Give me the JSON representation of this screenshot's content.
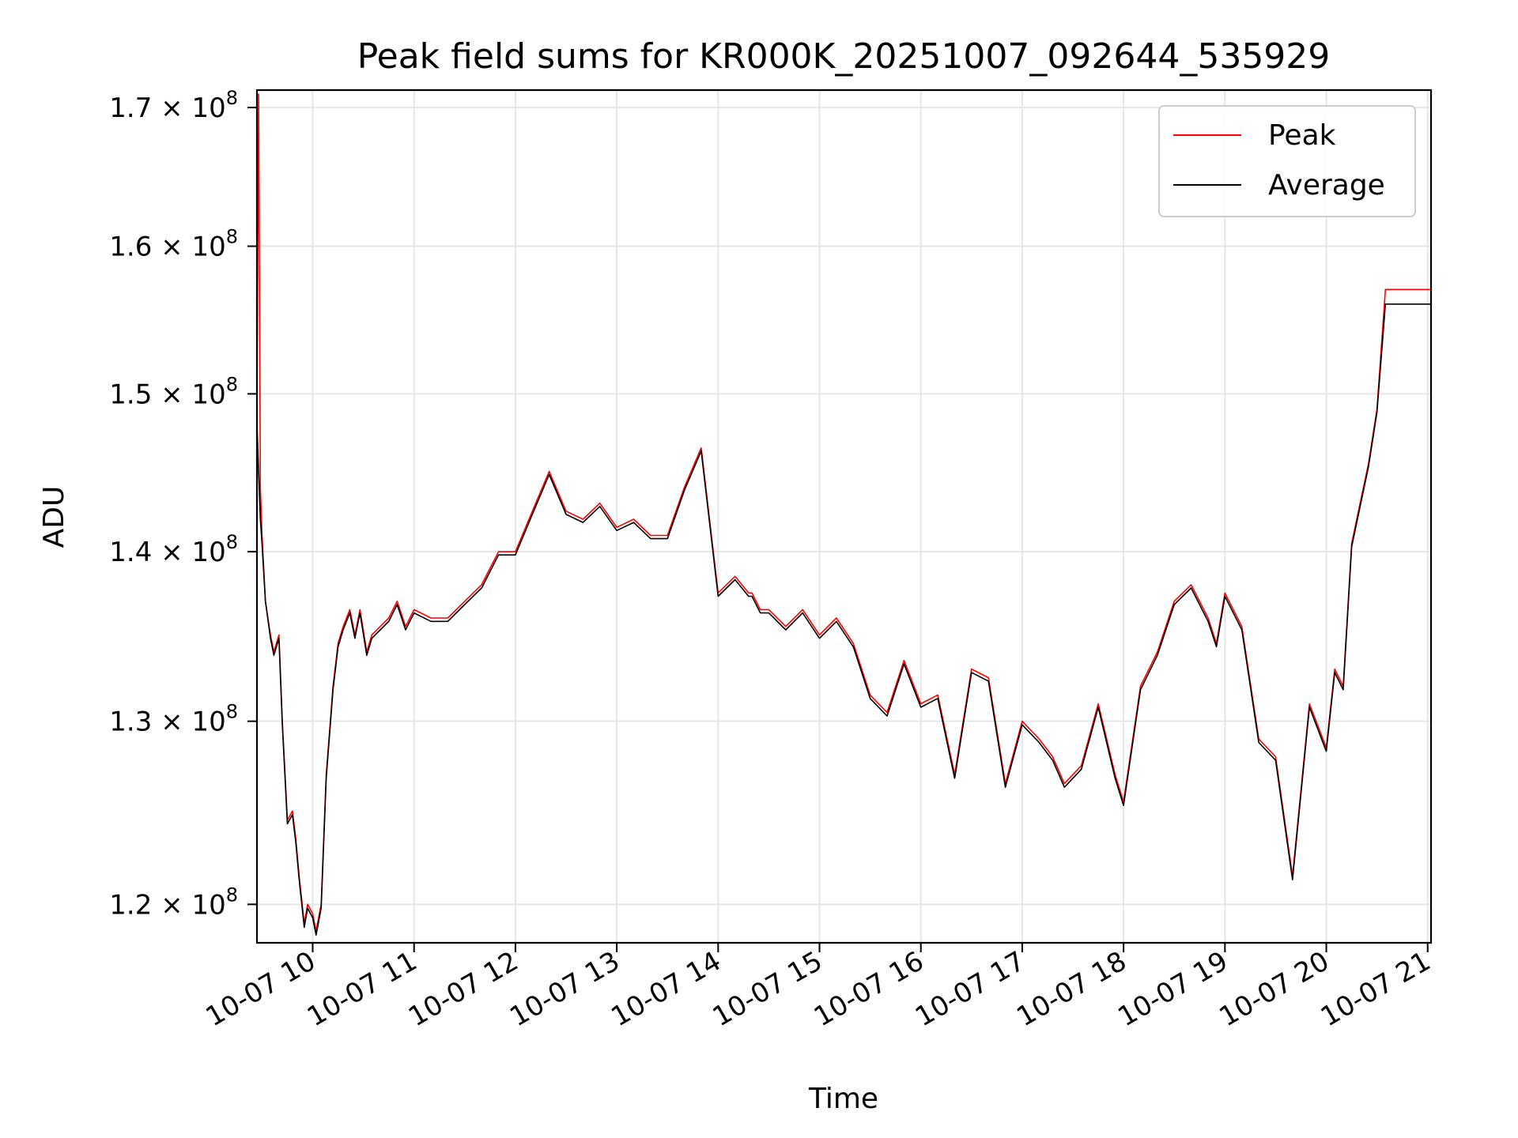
{
  "chart_data": {
    "type": "line",
    "title": "Peak field sums for KR000K_20251007_092644_535929",
    "xlabel": "Time",
    "ylabel": "ADU",
    "yscale": "log",
    "ylim": [
      118000000,
      171300000
    ],
    "xlim": [
      "2025-10-07 09:27",
      "2025-10-07 21:02"
    ],
    "grid": true,
    "legend_position": "top-right",
    "x_ticks": [
      {
        "value": "2025-10-07 10:00",
        "label": "10-07 10"
      },
      {
        "value": "2025-10-07 11:00",
        "label": "10-07 11"
      },
      {
        "value": "2025-10-07 12:00",
        "label": "10-07 12"
      },
      {
        "value": "2025-10-07 13:00",
        "label": "10-07 13"
      },
      {
        "value": "2025-10-07 14:00",
        "label": "10-07 14"
      },
      {
        "value": "2025-10-07 15:00",
        "label": "10-07 15"
      },
      {
        "value": "2025-10-07 16:00",
        "label": "10-07 16"
      },
      {
        "value": "2025-10-07 17:00",
        "label": "10-07 17"
      },
      {
        "value": "2025-10-07 18:00",
        "label": "10-07 18"
      },
      {
        "value": "2025-10-07 19:00",
        "label": "10-07 19"
      },
      {
        "value": "2025-10-07 20:00",
        "label": "10-07 20"
      },
      {
        "value": "2025-10-07 21:00",
        "label": "10-07 21"
      }
    ],
    "y_ticks": [
      {
        "value": 120000000,
        "mantissa": "1.2",
        "exponent": "8"
      },
      {
        "value": 130000000,
        "mantissa": "1.3",
        "exponent": "8"
      },
      {
        "value": 140000000,
        "mantissa": "1.4",
        "exponent": "8"
      },
      {
        "value": 150000000,
        "mantissa": "1.5",
        "exponent": "8"
      },
      {
        "value": 160000000,
        "mantissa": "1.6",
        "exponent": "8"
      },
      {
        "value": 170000000,
        "mantissa": "1.7",
        "exponent": "8"
      }
    ],
    "series": [
      {
        "name": "Peak",
        "color": "#ff0000",
        "x": [
          "2025-10-07 09:27",
          "2025-10-07 09:28",
          "2025-10-07 09:29",
          "2025-10-07 09:30",
          "2025-10-07 09:32",
          "2025-10-07 09:35",
          "2025-10-07 09:37",
          "2025-10-07 09:40",
          "2025-10-07 09:42",
          "2025-10-07 09:45",
          "2025-10-07 09:48",
          "2025-10-07 09:50",
          "2025-10-07 09:52",
          "2025-10-07 09:55",
          "2025-10-07 09:57",
          "2025-10-07 10:00",
          "2025-10-07 10:02",
          "2025-10-07 10:05",
          "2025-10-07 10:08",
          "2025-10-07 10:12",
          "2025-10-07 10:15",
          "2025-10-07 10:18",
          "2025-10-07 10:22",
          "2025-10-07 10:25",
          "2025-10-07 10:28",
          "2025-10-07 10:32",
          "2025-10-07 10:35",
          "2025-10-07 10:40",
          "2025-10-07 10:45",
          "2025-10-07 10:50",
          "2025-10-07 10:55",
          "2025-10-07 11:00",
          "2025-10-07 11:10",
          "2025-10-07 11:20",
          "2025-10-07 11:30",
          "2025-10-07 11:40",
          "2025-10-07 11:50",
          "2025-10-07 12:00",
          "2025-10-07 12:10",
          "2025-10-07 12:20",
          "2025-10-07 12:30",
          "2025-10-07 12:40",
          "2025-10-07 12:50",
          "2025-10-07 13:00",
          "2025-10-07 13:10",
          "2025-10-07 13:20",
          "2025-10-07 13:30",
          "2025-10-07 13:40",
          "2025-10-07 13:50",
          "2025-10-07 14:00",
          "2025-10-07 14:10",
          "2025-10-07 14:18",
          "2025-10-07 14:20",
          "2025-10-07 14:25",
          "2025-10-07 14:30",
          "2025-10-07 14:40",
          "2025-10-07 14:50",
          "2025-10-07 15:00",
          "2025-10-07 15:10",
          "2025-10-07 15:20",
          "2025-10-07 15:30",
          "2025-10-07 15:40",
          "2025-10-07 15:50",
          "2025-10-07 16:00",
          "2025-10-07 16:10",
          "2025-10-07 16:20",
          "2025-10-07 16:30",
          "2025-10-07 16:40",
          "2025-10-07 16:50",
          "2025-10-07 17:00",
          "2025-10-07 17:10",
          "2025-10-07 17:18",
          "2025-10-07 17:25",
          "2025-10-07 17:35",
          "2025-10-07 17:45",
          "2025-10-07 17:55",
          "2025-10-07 18:00",
          "2025-10-07 18:10",
          "2025-10-07 18:20",
          "2025-10-07 18:30",
          "2025-10-07 18:40",
          "2025-10-07 18:50",
          "2025-10-07 18:55",
          "2025-10-07 19:00",
          "2025-10-07 19:10",
          "2025-10-07 19:20",
          "2025-10-07 19:30",
          "2025-10-07 19:40",
          "2025-10-07 19:50",
          "2025-10-07 20:00",
          "2025-10-07 20:05",
          "2025-10-07 20:10",
          "2025-10-07 20:15",
          "2025-10-07 20:20",
          "2025-10-07 20:25",
          "2025-10-07 20:30",
          "2025-10-07 20:35",
          "2025-10-07 20:40",
          "2025-10-07 20:45",
          "2025-10-07 20:50",
          "2025-10-07 20:55",
          "2025-10-07 21:00",
          "2025-10-07 21:02"
        ],
        "y": [
          149000000,
          171000000,
          144000000,
          141000000,
          137000000,
          135000000,
          134000000,
          135000000,
          130000000,
          124500000,
          125000000,
          123500000,
          121500000,
          119000000,
          120000000,
          119500000,
          118600000,
          120000000,
          127000000,
          132000000,
          134500000,
          135500000,
          136500000,
          135000000,
          136500000,
          134000000,
          135000000,
          135500000,
          136000000,
          137000000,
          135500000,
          136500000,
          136000000,
          136000000,
          137000000,
          138000000,
          140000000,
          140000000,
          142500000,
          145000000,
          142500000,
          142000000,
          143000000,
          141500000,
          142000000,
          141000000,
          141000000,
          144000000,
          146500000,
          137500000,
          138500000,
          137500000,
          137500000,
          136500000,
          136500000,
          135500000,
          136500000,
          135000000,
          136000000,
          134500000,
          131500000,
          130500000,
          133500000,
          131000000,
          131500000,
          127000000,
          133000000,
          132500000,
          126500000,
          130000000,
          129000000,
          128000000,
          126500000,
          127500000,
          131000000,
          127000000,
          125500000,
          132000000,
          134000000,
          137000000,
          138000000,
          136000000,
          134500000,
          137500000,
          135500000,
          129000000,
          128000000,
          121500000,
          131000000,
          128500000,
          133000000,
          132000000,
          140500000,
          143000000,
          145500000,
          149000000,
          157000000,
          157000000,
          157000000,
          157000000,
          157000000,
          157000000,
          157000000
        ]
      },
      {
        "name": "Average",
        "color": "#000000",
        "x": [
          "2025-10-07 09:27",
          "2025-10-07 09:28",
          "2025-10-07 09:29",
          "2025-10-07 09:30",
          "2025-10-07 09:32",
          "2025-10-07 09:35",
          "2025-10-07 09:37",
          "2025-10-07 09:40",
          "2025-10-07 09:42",
          "2025-10-07 09:45",
          "2025-10-07 09:48",
          "2025-10-07 09:50",
          "2025-10-07 09:52",
          "2025-10-07 09:55",
          "2025-10-07 09:57",
          "2025-10-07 10:00",
          "2025-10-07 10:02",
          "2025-10-07 10:05",
          "2025-10-07 10:08",
          "2025-10-07 10:12",
          "2025-10-07 10:15",
          "2025-10-07 10:18",
          "2025-10-07 10:22",
          "2025-10-07 10:25",
          "2025-10-07 10:28",
          "2025-10-07 10:32",
          "2025-10-07 10:35",
          "2025-10-07 10:40",
          "2025-10-07 10:45",
          "2025-10-07 10:50",
          "2025-10-07 10:55",
          "2025-10-07 11:00",
          "2025-10-07 11:10",
          "2025-10-07 11:20",
          "2025-10-07 11:30",
          "2025-10-07 11:40",
          "2025-10-07 11:50",
          "2025-10-07 12:00",
          "2025-10-07 12:10",
          "2025-10-07 12:20",
          "2025-10-07 12:30",
          "2025-10-07 12:40",
          "2025-10-07 12:50",
          "2025-10-07 13:00",
          "2025-10-07 13:10",
          "2025-10-07 13:20",
          "2025-10-07 13:30",
          "2025-10-07 13:40",
          "2025-10-07 13:50",
          "2025-10-07 14:00",
          "2025-10-07 14:10",
          "2025-10-07 14:18",
          "2025-10-07 14:20",
          "2025-10-07 14:25",
          "2025-10-07 14:30",
          "2025-10-07 14:40",
          "2025-10-07 14:50",
          "2025-10-07 15:00",
          "2025-10-07 15:10",
          "2025-10-07 15:20",
          "2025-10-07 15:30",
          "2025-10-07 15:40",
          "2025-10-07 15:50",
          "2025-10-07 16:00",
          "2025-10-07 16:10",
          "2025-10-07 16:20",
          "2025-10-07 16:30",
          "2025-10-07 16:40",
          "2025-10-07 16:50",
          "2025-10-07 17:00",
          "2025-10-07 17:10",
          "2025-10-07 17:18",
          "2025-10-07 17:25",
          "2025-10-07 17:35",
          "2025-10-07 17:45",
          "2025-10-07 17:55",
          "2025-10-07 18:00",
          "2025-10-07 18:10",
          "2025-10-07 18:20",
          "2025-10-07 18:30",
          "2025-10-07 18:40",
          "2025-10-07 18:50",
          "2025-10-07 18:55",
          "2025-10-07 19:00",
          "2025-10-07 19:10",
          "2025-10-07 19:20",
          "2025-10-07 19:30",
          "2025-10-07 19:40",
          "2025-10-07 19:50",
          "2025-10-07 20:00",
          "2025-10-07 20:05",
          "2025-10-07 20:10",
          "2025-10-07 20:15",
          "2025-10-07 20:20",
          "2025-10-07 20:25",
          "2025-10-07 20:30",
          "2025-10-07 20:35",
          "2025-10-07 20:40",
          "2025-10-07 20:45",
          "2025-10-07 20:50",
          "2025-10-07 20:55",
          "2025-10-07 21:00",
          "2025-10-07 21:02"
        ],
        "y": [
          148000000,
          145000000,
          142000000,
          140500000,
          137000000,
          134800000,
          133800000,
          134800000,
          129800000,
          124300000,
          124800000,
          123300000,
          121300000,
          118800000,
          119800000,
          119300000,
          118400000,
          119800000,
          126800000,
          131800000,
          134300000,
          135300000,
          136300000,
          134800000,
          136300000,
          133800000,
          134800000,
          135300000,
          135800000,
          136800000,
          135300000,
          136300000,
          135800000,
          135800000,
          136800000,
          137800000,
          139800000,
          139800000,
          142300000,
          144800000,
          142300000,
          141800000,
          142800000,
          141300000,
          141800000,
          140800000,
          140800000,
          143800000,
          146300000,
          137300000,
          138300000,
          137300000,
          137300000,
          136300000,
          136300000,
          135300000,
          136300000,
          134800000,
          135800000,
          134300000,
          131300000,
          130300000,
          133300000,
          130800000,
          131300000,
          126800000,
          132800000,
          132300000,
          126300000,
          129800000,
          128800000,
          127800000,
          126300000,
          127300000,
          130800000,
          126800000,
          125300000,
          131800000,
          133800000,
          136800000,
          137800000,
          135800000,
          134300000,
          137300000,
          135300000,
          128800000,
          127800000,
          121300000,
          130800000,
          128300000,
          132800000,
          131800000,
          140300000,
          142800000,
          145300000,
          148800000,
          156000000,
          156000000,
          156000000,
          156000000,
          156000000,
          156000000,
          156000000
        ]
      }
    ]
  }
}
